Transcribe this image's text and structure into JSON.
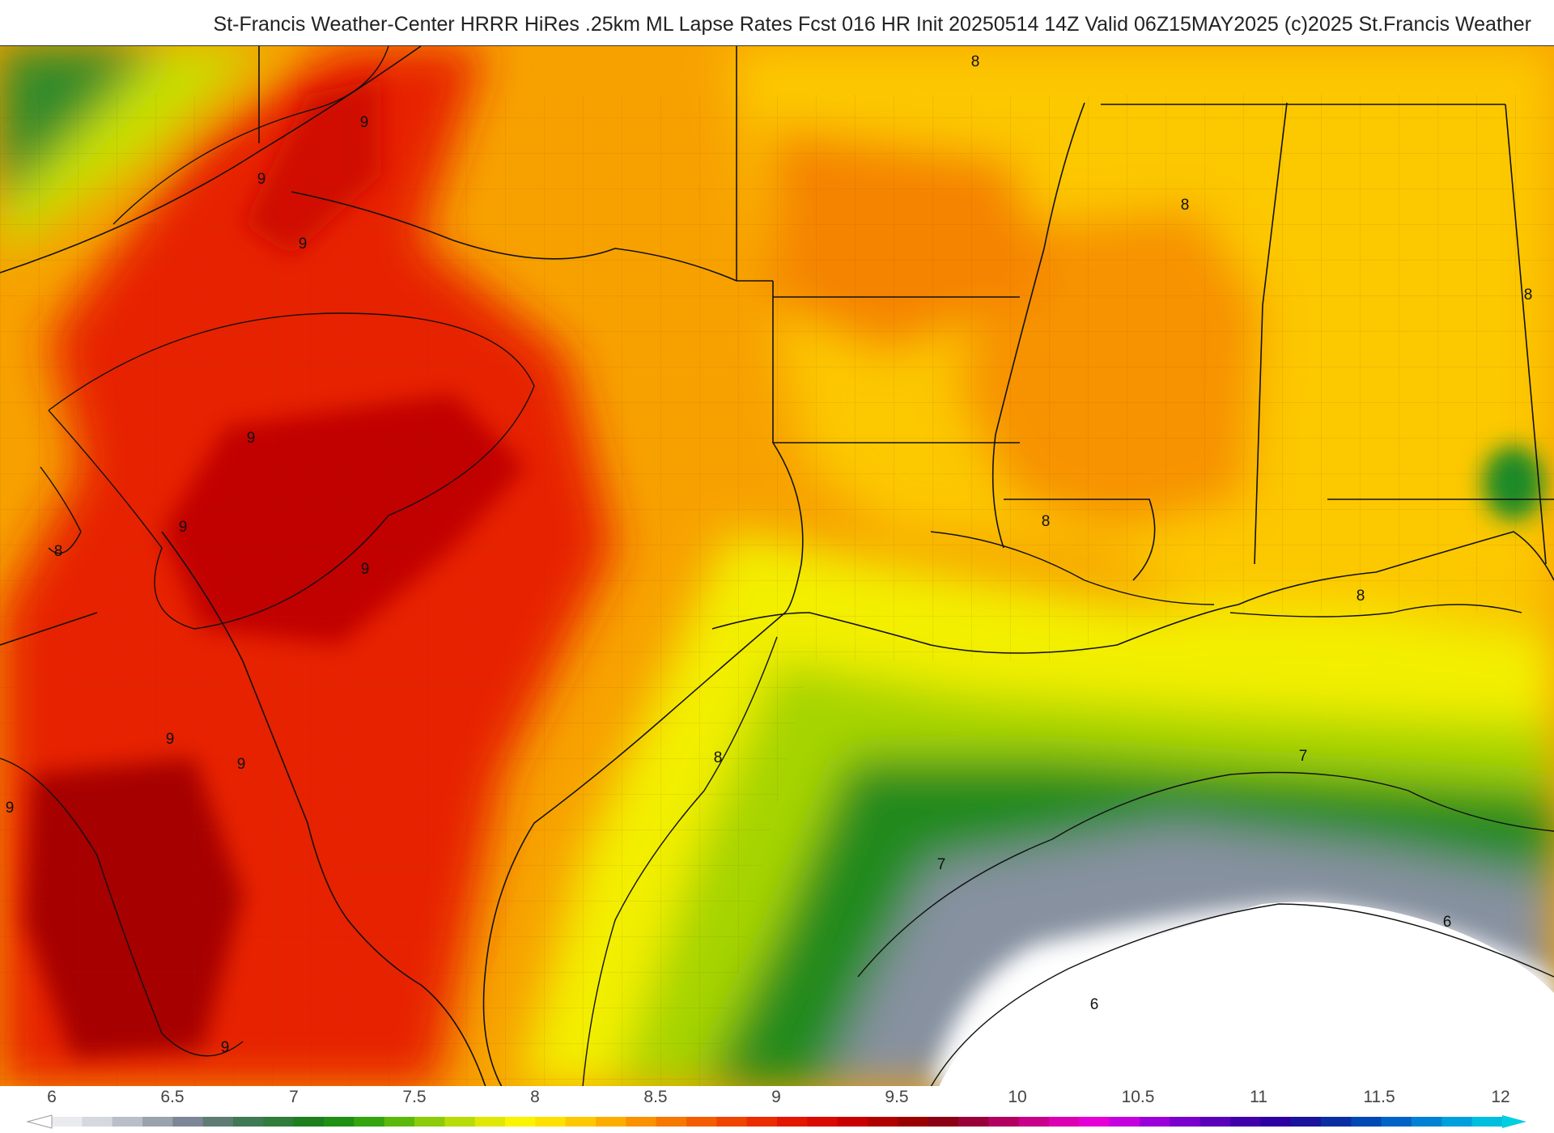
{
  "header": {
    "title": "St-Francis Weather-Center HRRR HiRes .25km ML Lapse Rates  Fcst 016 HR Init 20250514 14Z  Valid 06Z15MAY2025    (c)2025 St.Francis Weather"
  },
  "map": {
    "contour_labels": [
      "9",
      "9",
      "9",
      "9",
      "9",
      "9",
      "9",
      "9",
      "9",
      "9",
      "8",
      "8",
      "8",
      "8",
      "8",
      "8",
      "8",
      "7",
      "7",
      "6",
      "6"
    ]
  },
  "colorbar": {
    "ticks": [
      "6",
      "6.5",
      "7",
      "7.5",
      "8",
      "8.5",
      "9",
      "9.5",
      "10",
      "10.5",
      "11",
      "11.5",
      "12"
    ],
    "colors": [
      "#e9ebef",
      "#d5d8de",
      "#b9bec8",
      "#9aa2ae",
      "#7d8697",
      "#5e7c74",
      "#3f7a55",
      "#2f7c3b",
      "#1e7f1e",
      "#1f9014",
      "#35a40e",
      "#5cb90c",
      "#8ccc0a",
      "#b7dc06",
      "#dfe802",
      "#fbf400",
      "#fde100",
      "#fdc800",
      "#fcae00",
      "#fa9200",
      "#f67800",
      "#f35d00",
      "#ef4300",
      "#ea2c00",
      "#e31700",
      "#d90a00",
      "#c80000",
      "#b10000",
      "#9a0000",
      "#8a0014",
      "#99003a",
      "#b10061",
      "#c8008a",
      "#dc00b2",
      "#e600d7",
      "#c400de",
      "#9c00d8",
      "#7a00cc",
      "#5a00bb",
      "#4000aa",
      "#2c00a0",
      "#1a149c",
      "#0a2ea2",
      "#0048b4",
      "#0064c6",
      "#0082d4",
      "#00a0dc",
      "#00bedd"
    ]
  }
}
